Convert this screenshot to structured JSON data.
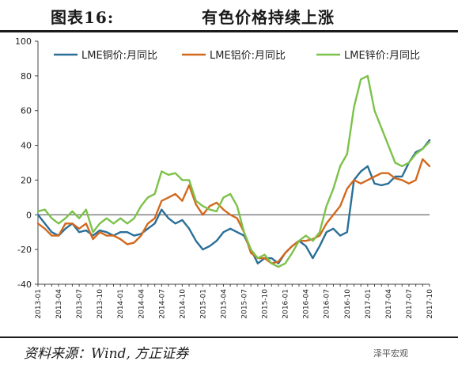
{
  "figure": {
    "number": "图表16:",
    "title": "有色价格持续上涨",
    "source": "资料来源：Wind, 方正证券",
    "watermark": "泽平宏观"
  },
  "chart_data": {
    "type": "line",
    "ylim": [
      -40,
      100
    ],
    "yticks": [
      -40,
      -20,
      0,
      20,
      40,
      60,
      80,
      100
    ],
    "x": [
      "2013-01",
      "2013-02",
      "2013-03",
      "2013-04",
      "2013-05",
      "2013-06",
      "2013-07",
      "2013-08",
      "2013-09",
      "2013-10",
      "2013-11",
      "2013-12",
      "2014-01",
      "2014-02",
      "2014-03",
      "2014-04",
      "2014-05",
      "2014-06",
      "2014-07",
      "2014-08",
      "2014-09",
      "2014-10",
      "2014-11",
      "2014-12",
      "2015-01",
      "2015-02",
      "2015-03",
      "2015-04",
      "2015-05",
      "2015-06",
      "2015-07",
      "2015-08",
      "2015-09",
      "2015-10",
      "2015-11",
      "2015-12",
      "2016-01",
      "2016-02",
      "2016-03",
      "2016-04",
      "2016-05",
      "2016-06",
      "2016-07",
      "2016-08",
      "2016-09",
      "2016-10",
      "2016-11",
      "2016-12",
      "2017-01",
      "2017-02",
      "2017-03",
      "2017-04",
      "2017-05",
      "2017-06",
      "2017-07",
      "2017-08",
      "2017-09",
      "2017-10"
    ],
    "xticks": [
      "2013-01",
      "2013-04",
      "2013-07",
      "2013-10",
      "2014-01",
      "2014-04",
      "2014-07",
      "2014-10",
      "2015-01",
      "2015-04",
      "2015-07",
      "2015-10",
      "2016-01",
      "2016-04",
      "2016-07",
      "2016-10",
      "2017-01",
      "2017-04",
      "2017-07",
      "2017-10"
    ],
    "grid": false,
    "legend_position": "top",
    "series": [
      {
        "name": "LME铜价:月同比",
        "color": "#2a6f97",
        "values": [
          0,
          -5,
          -10,
          -12,
          -8,
          -5,
          -10,
          -9,
          -12,
          -9,
          -10,
          -12,
          -10,
          -10,
          -12,
          -11,
          -8,
          -5,
          3,
          -2,
          -5,
          -3,
          -8,
          -15,
          -20,
          -18,
          -15,
          -10,
          -8,
          -10,
          -12,
          -20,
          -28,
          -25,
          -25,
          -28,
          -22,
          -18,
          -15,
          -18,
          -25,
          -18,
          -10,
          -8,
          -12,
          -10,
          20,
          25,
          28,
          18,
          17,
          18,
          22,
          22,
          30,
          36,
          38,
          43
        ]
      },
      {
        "name": "LME铝价:月同比",
        "color": "#d2691e",
        "values": [
          -5,
          -8,
          -12,
          -12,
          -5,
          -5,
          -8,
          -5,
          -14,
          -10,
          -12,
          -12,
          -14,
          -17,
          -16,
          -12,
          -5,
          -2,
          8,
          10,
          12,
          8,
          17,
          6,
          0,
          5,
          7,
          3,
          0,
          -2,
          -10,
          -22,
          -25,
          -25,
          -28,
          -27,
          -22,
          -18,
          -15,
          -15,
          -14,
          -12,
          -5,
          0,
          5,
          15,
          20,
          18,
          20,
          22,
          24,
          24,
          21,
          20,
          18,
          20,
          32,
          28
        ]
      },
      {
        "name": "LME锌价:月同比",
        "color": "#7cc24a",
        "values": [
          2,
          3,
          -2,
          -5,
          -2,
          2,
          -2,
          3,
          -10,
          -5,
          -2,
          -5,
          -2,
          -5,
          -2,
          5,
          10,
          12,
          25,
          23,
          24,
          20,
          20,
          8,
          5,
          3,
          2,
          10,
          12,
          5,
          -10,
          -20,
          -25,
          -23,
          -28,
          -30,
          -28,
          -22,
          -15,
          -12,
          -15,
          -10,
          5,
          15,
          28,
          35,
          62,
          78,
          80,
          60,
          50,
          40,
          30,
          28,
          30,
          35,
          38,
          42
        ]
      }
    ]
  }
}
